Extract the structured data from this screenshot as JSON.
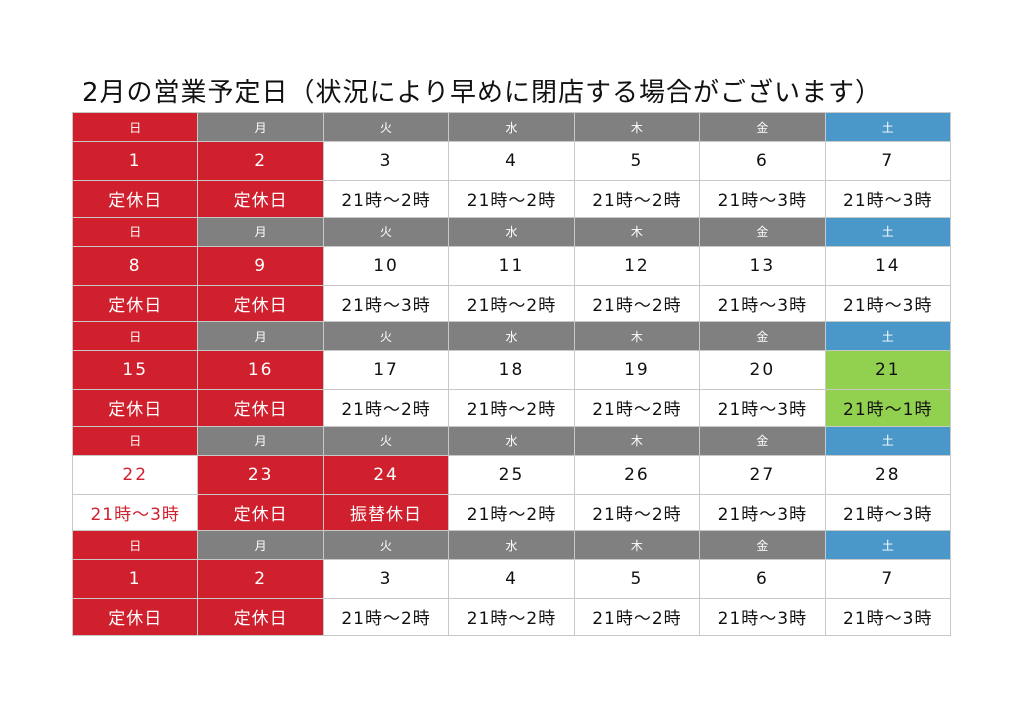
{
  "title": "2月の営業予定日（状況により早めに閉店する場合がございます）",
  "weekdays": [
    "日",
    "月",
    "火",
    "水",
    "木",
    "金",
    "土"
  ],
  "weekday_fills": [
    "#d0202e",
    "#808080",
    "#808080",
    "#808080",
    "#808080",
    "#808080",
    "#4a97c9"
  ],
  "weeks": [
    {
      "dates": [
        "1",
        "2",
        "3",
        "4",
        "5",
        "6",
        "7"
      ],
      "hours": [
        "定休日",
        "定休日",
        "21時〜2時",
        "21時〜2時",
        "21時〜2時",
        "21時〜3時",
        "21時〜3時"
      ],
      "fills": [
        "#d0202e",
        "#d0202e",
        "#ffffff",
        "#ffffff",
        "#ffffff",
        "#ffffff",
        "#ffffff"
      ],
      "text_colors": [
        "#ffffff",
        "#ffffff",
        "#111111",
        "#111111",
        "#111111",
        "#111111",
        "#111111"
      ]
    },
    {
      "dates": [
        "8",
        "9",
        "10",
        "11",
        "12",
        "13",
        "14"
      ],
      "hours": [
        "定休日",
        "定休日",
        "21時〜3時",
        "21時〜2時",
        "21時〜2時",
        "21時〜3時",
        "21時〜3時"
      ],
      "fills": [
        "#d0202e",
        "#d0202e",
        "#ffffff",
        "#ffffff",
        "#ffffff",
        "#ffffff",
        "#ffffff"
      ],
      "text_colors": [
        "#ffffff",
        "#ffffff",
        "#111111",
        "#111111",
        "#111111",
        "#111111",
        "#111111"
      ]
    },
    {
      "dates": [
        "15",
        "16",
        "17",
        "18",
        "19",
        "20",
        "21"
      ],
      "hours": [
        "定休日",
        "定休日",
        "21時〜2時",
        "21時〜2時",
        "21時〜2時",
        "21時〜3時",
        "21時〜1時"
      ],
      "fills": [
        "#d0202e",
        "#d0202e",
        "#ffffff",
        "#ffffff",
        "#ffffff",
        "#ffffff",
        "#92d050"
      ],
      "text_colors": [
        "#ffffff",
        "#ffffff",
        "#111111",
        "#111111",
        "#111111",
        "#111111",
        "#111111"
      ]
    },
    {
      "dates": [
        "22",
        "23",
        "24",
        "25",
        "26",
        "27",
        "28"
      ],
      "hours": [
        "21時〜3時",
        "定休日",
        "振替休日",
        "21時〜2時",
        "21時〜2時",
        "21時〜3時",
        "21時〜3時"
      ],
      "fills": [
        "#ffffff",
        "#d0202e",
        "#d0202e",
        "#ffffff",
        "#ffffff",
        "#ffffff",
        "#ffffff"
      ],
      "text_colors": [
        "#d0202e",
        "#ffffff",
        "#ffffff",
        "#111111",
        "#111111",
        "#111111",
        "#111111"
      ]
    },
    {
      "dates": [
        "1",
        "2",
        "3",
        "4",
        "5",
        "6",
        "7"
      ],
      "hours": [
        "定休日",
        "定休日",
        "21時〜2時",
        "21時〜2時",
        "21時〜2時",
        "21時〜3時",
        "21時〜3時"
      ],
      "fills": [
        "#d0202e",
        "#d0202e",
        "#ffffff",
        "#ffffff",
        "#ffffff",
        "#ffffff",
        "#ffffff"
      ],
      "text_colors": [
        "#ffffff",
        "#ffffff",
        "#111111",
        "#111111",
        "#111111",
        "#111111",
        "#111111"
      ]
    }
  ]
}
